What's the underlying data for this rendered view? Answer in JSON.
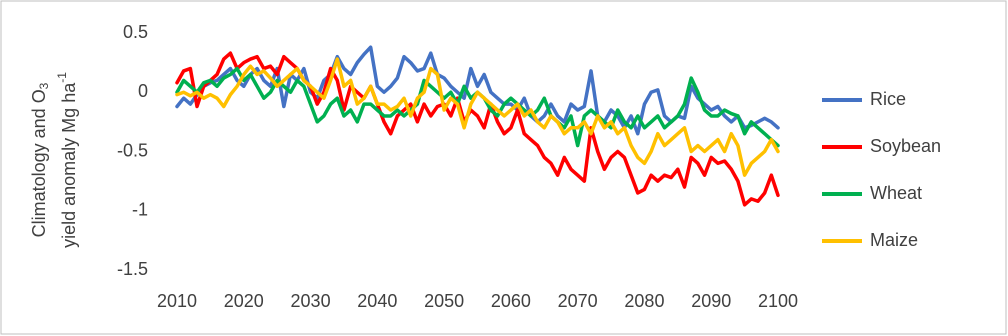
{
  "chart_data": {
    "type": "line",
    "ylabel": {
      "line1": "Climatology and O",
      "line1_sub": "3",
      "line2": "yield anomaly Mg ha",
      "line2_sup": "-1"
    },
    "x": [
      2010,
      2011,
      2012,
      2013,
      2014,
      2015,
      2016,
      2017,
      2018,
      2019,
      2020,
      2021,
      2022,
      2023,
      2024,
      2025,
      2026,
      2027,
      2028,
      2029,
      2030,
      2031,
      2032,
      2033,
      2034,
      2035,
      2036,
      2037,
      2038,
      2039,
      2040,
      2041,
      2042,
      2043,
      2044,
      2045,
      2046,
      2047,
      2048,
      2049,
      2050,
      2051,
      2052,
      2053,
      2054,
      2055,
      2056,
      2057,
      2058,
      2059,
      2060,
      2061,
      2062,
      2063,
      2064,
      2065,
      2066,
      2067,
      2068,
      2069,
      2070,
      2071,
      2072,
      2073,
      2074,
      2075,
      2076,
      2077,
      2078,
      2079,
      2080,
      2081,
      2082,
      2083,
      2084,
      2085,
      2086,
      2087,
      2088,
      2089,
      2090,
      2091,
      2092,
      2093,
      2094,
      2095,
      2096,
      2097,
      2098,
      2099,
      2100
    ],
    "series": [
      {
        "name": "Rice",
        "color": "#4472c4",
        "values": [
          -0.12,
          -0.05,
          -0.1,
          -0.02,
          0.05,
          0.08,
          0.1,
          0.15,
          0.2,
          0.1,
          0.05,
          0.15,
          0.2,
          0.1,
          0.05,
          0.2,
          -0.12,
          0.15,
          0.1,
          0.2,
          0.0,
          -0.05,
          0.1,
          0.15,
          0.3,
          0.2,
          0.15,
          0.25,
          0.32,
          0.38,
          0.05,
          0.0,
          0.05,
          0.12,
          0.3,
          0.25,
          0.18,
          0.2,
          0.33,
          0.15,
          0.12,
          0.05,
          0.0,
          -0.05,
          0.2,
          0.05,
          0.15,
          0.0,
          -0.05,
          -0.1,
          -0.1,
          -0.15,
          -0.05,
          -0.2,
          -0.25,
          -0.2,
          -0.1,
          -0.2,
          -0.25,
          -0.1,
          -0.15,
          -0.12,
          0.18,
          -0.2,
          -0.25,
          -0.15,
          -0.2,
          -0.3,
          -0.2,
          -0.35,
          -0.1,
          0.0,
          0.02,
          -0.2,
          -0.25,
          -0.2,
          -0.22,
          0.05,
          -0.05,
          -0.1,
          -0.15,
          -0.12,
          -0.2,
          -0.25,
          -0.2,
          -0.3,
          -0.28,
          -0.25,
          -0.22,
          -0.25,
          -0.3
        ]
      },
      {
        "name": "Soybean",
        "color": "#ff0000",
        "values": [
          0.08,
          0.18,
          0.2,
          -0.12,
          0.05,
          0.1,
          0.15,
          0.28,
          0.33,
          0.2,
          0.25,
          0.28,
          0.3,
          0.2,
          0.22,
          0.15,
          0.3,
          0.25,
          0.2,
          0.1,
          0.05,
          -0.1,
          0.0,
          0.2,
          0.1,
          -0.15,
          0.05,
          0.0,
          -0.05,
          0.05,
          -0.1,
          -0.25,
          -0.35,
          -0.2,
          -0.15,
          -0.1,
          -0.25,
          -0.1,
          -0.2,
          -0.12,
          -0.1,
          -0.2,
          -0.05,
          -0.25,
          -0.15,
          -0.2,
          -0.3,
          -0.1,
          -0.25,
          -0.35,
          -0.3,
          -0.15,
          -0.35,
          -0.4,
          -0.45,
          -0.55,
          -0.6,
          -0.7,
          -0.55,
          -0.65,
          -0.7,
          -0.75,
          -0.3,
          -0.5,
          -0.65,
          -0.55,
          -0.5,
          -0.55,
          -0.7,
          -0.85,
          -0.82,
          -0.7,
          -0.75,
          -0.7,
          -0.72,
          -0.65,
          -0.8,
          -0.55,
          -0.6,
          -0.7,
          -0.55,
          -0.6,
          -0.58,
          -0.65,
          -0.75,
          -0.95,
          -0.9,
          -0.92,
          -0.85,
          -0.7,
          -0.87
        ]
      },
      {
        "name": "Wheat",
        "color": "#00b050",
        "values": [
          0.0,
          0.1,
          0.05,
          0.0,
          0.08,
          0.1,
          0.05,
          0.12,
          0.15,
          0.2,
          0.1,
          0.15,
          0.05,
          -0.05,
          0.0,
          0.1,
          0.05,
          0.0,
          0.1,
          0.05,
          -0.1,
          -0.25,
          -0.2,
          -0.1,
          -0.05,
          -0.2,
          -0.15,
          -0.25,
          -0.1,
          -0.1,
          -0.15,
          -0.2,
          -0.2,
          -0.15,
          -0.2,
          -0.15,
          -0.1,
          0.1,
          0.05,
          0.0,
          -0.05,
          0.0,
          -0.1,
          0.05,
          -0.05,
          0.0,
          -0.05,
          -0.15,
          -0.2,
          -0.1,
          -0.05,
          -0.1,
          -0.15,
          -0.2,
          -0.15,
          -0.05,
          -0.2,
          -0.25,
          -0.3,
          -0.2,
          -0.45,
          -0.2,
          -0.15,
          -0.2,
          -0.25,
          -0.3,
          -0.15,
          -0.25,
          -0.3,
          -0.2,
          -0.3,
          -0.25,
          -0.2,
          -0.3,
          -0.25,
          -0.2,
          -0.1,
          0.12,
          0.0,
          -0.15,
          -0.2,
          -0.2,
          -0.15,
          -0.18,
          -0.2,
          -0.35,
          -0.25,
          -0.3,
          -0.35,
          -0.4,
          -0.45
        ]
      },
      {
        "name": "Maize",
        "color": "#ffc000",
        "values": [
          -0.02,
          0.0,
          -0.03,
          0.0,
          -0.05,
          -0.02,
          -0.05,
          -0.12,
          -0.02,
          0.05,
          0.15,
          0.22,
          0.15,
          0.18,
          0.12,
          0.05,
          0.1,
          0.15,
          0.2,
          0.1,
          0.05,
          0.0,
          -0.05,
          0.1,
          0.28,
          0.05,
          0.1,
          -0.1,
          -0.05,
          0.05,
          -0.1,
          -0.1,
          -0.15,
          -0.12,
          -0.05,
          -0.2,
          -0.05,
          0.0,
          0.2,
          0.15,
          -0.15,
          -0.05,
          -0.1,
          -0.3,
          -0.1,
          0.0,
          -0.05,
          -0.1,
          -0.15,
          -0.2,
          -0.15,
          -0.1,
          -0.2,
          -0.15,
          -0.25,
          -0.3,
          -0.2,
          -0.25,
          -0.35,
          -0.3,
          -0.3,
          -0.25,
          -0.35,
          -0.2,
          -0.3,
          -0.25,
          -0.35,
          -0.3,
          -0.45,
          -0.55,
          -0.6,
          -0.5,
          -0.35,
          -0.45,
          -0.4,
          -0.35,
          -0.3,
          -0.5,
          -0.45,
          -0.5,
          -0.45,
          -0.4,
          -0.5,
          -0.35,
          -0.45,
          -0.7,
          -0.6,
          -0.55,
          -0.5,
          -0.4,
          -0.5
        ]
      }
    ],
    "xlim": [
      2010,
      2100
    ],
    "xticks": [
      2010,
      2020,
      2030,
      2040,
      2050,
      2060,
      2070,
      2080,
      2090,
      2100
    ],
    "ylim": [
      -1.5,
      0.5
    ],
    "yticks": [
      0.5,
      0,
      -0.5,
      -1,
      -1.5
    ],
    "grid": false,
    "legend": "right"
  }
}
